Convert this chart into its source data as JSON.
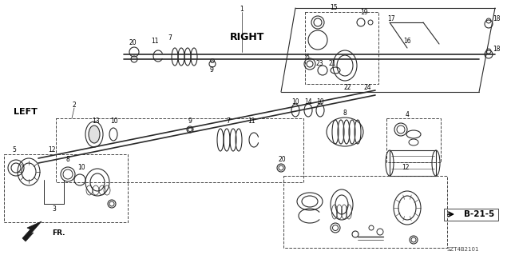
{
  "bg_color": "#ffffff",
  "line_color": "#2a2a2a",
  "footer_code": "SZT4B2101",
  "page_ref": "B-21-5",
  "right_label": "RIGHT",
  "left_label": "LEFT",
  "fr_label": "FR."
}
